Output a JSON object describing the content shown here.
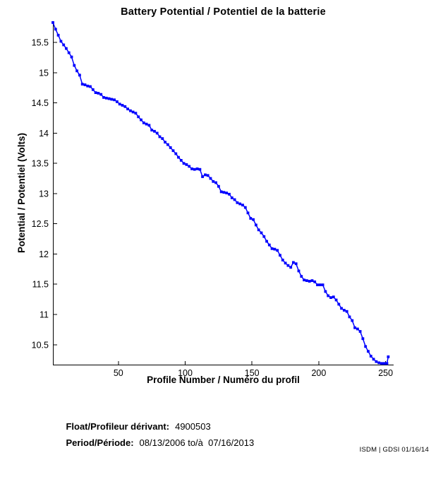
{
  "chart_data": {
    "type": "line",
    "title": "Battery Potential / Potentiel de la batterie",
    "xlabel": "Profile Number / Numéro du profil",
    "ylabel": "Potential / Potentiel (Volts)",
    "xlim": [
      1,
      256
    ],
    "ylim": [
      10.17,
      15.84
    ],
    "x_ticks": [
      50,
      100,
      150,
      200,
      250
    ],
    "y_ticks": [
      10.5,
      11,
      11.5,
      12,
      12.5,
      13,
      13.5,
      14,
      14.5,
      15,
      15.5
    ],
    "grid": false,
    "legend": "none",
    "line_color": "#0000fe",
    "axis_color": "#000000",
    "marker": "square",
    "series": [
      {
        "name": "Battery Potential (Volts)",
        "x": [
          1,
          3,
          5,
          7,
          9,
          11,
          13,
          15,
          17,
          19,
          21,
          23,
          25,
          27,
          29,
          31,
          33,
          35,
          37,
          39,
          41,
          43,
          45,
          47,
          49,
          51,
          53,
          55,
          57,
          59,
          61,
          63,
          65,
          67,
          69,
          71,
          73,
          75,
          77,
          79,
          81,
          83,
          85,
          87,
          89,
          91,
          93,
          95,
          97,
          99,
          101,
          103,
          105,
          107,
          109,
          111,
          113,
          115,
          117,
          119,
          121,
          123,
          125,
          127,
          129,
          131,
          133,
          135,
          137,
          139,
          141,
          143,
          145,
          147,
          149,
          151,
          153,
          155,
          157,
          159,
          161,
          163,
          165,
          167,
          169,
          171,
          173,
          175,
          177,
          179,
          181,
          183,
          185,
          187,
          189,
          191,
          193,
          195,
          197,
          199,
          201,
          203,
          205,
          207,
          209,
          211,
          213,
          215,
          217,
          219,
          221,
          223,
          225,
          227,
          229,
          231,
          233,
          235,
          237,
          239,
          241,
          243,
          245,
          247,
          249,
          251,
          252
        ],
        "y": [
          15.83,
          15.72,
          15.62,
          15.52,
          15.46,
          15.4,
          15.33,
          15.26,
          15.12,
          15.03,
          14.96,
          14.81,
          14.8,
          14.78,
          14.77,
          14.72,
          14.67,
          14.66,
          14.64,
          14.59,
          14.58,
          14.57,
          14.56,
          14.55,
          14.52,
          14.48,
          14.46,
          14.44,
          14.4,
          14.37,
          14.35,
          14.33,
          14.27,
          14.22,
          14.17,
          14.15,
          14.13,
          14.05,
          14.03,
          14.0,
          13.94,
          13.91,
          13.85,
          13.81,
          13.76,
          13.71,
          13.66,
          13.6,
          13.55,
          13.5,
          13.48,
          13.45,
          13.41,
          13.4,
          13.41,
          13.4,
          13.28,
          13.31,
          13.3,
          13.25,
          13.2,
          13.18,
          13.12,
          13.03,
          13.02,
          13.01,
          12.99,
          12.93,
          12.9,
          12.85,
          12.83,
          12.81,
          12.77,
          12.68,
          12.59,
          12.57,
          12.48,
          12.4,
          12.35,
          12.29,
          12.21,
          12.15,
          12.09,
          12.08,
          12.06,
          11.98,
          11.9,
          11.85,
          11.81,
          11.78,
          11.86,
          11.84,
          11.72,
          11.63,
          11.57,
          11.56,
          11.55,
          11.56,
          11.54,
          11.49,
          11.49,
          11.49,
          11.38,
          11.31,
          11.28,
          11.29,
          11.24,
          11.17,
          11.1,
          11.07,
          11.05,
          10.96,
          10.9,
          10.78,
          10.76,
          10.72,
          10.6,
          10.47,
          10.39,
          10.31,
          10.26,
          10.22,
          10.2,
          10.19,
          10.19,
          10.19,
          10.3
        ]
      }
    ]
  },
  "footer": {
    "float_label": "Float/Profileur dérivant:",
    "float_value": "4900503",
    "period_label": "Period/Période:",
    "period_value": "08/13/2006 to/à  07/16/2013",
    "watermark": "ISDM | GDSI 01/16/14"
  }
}
